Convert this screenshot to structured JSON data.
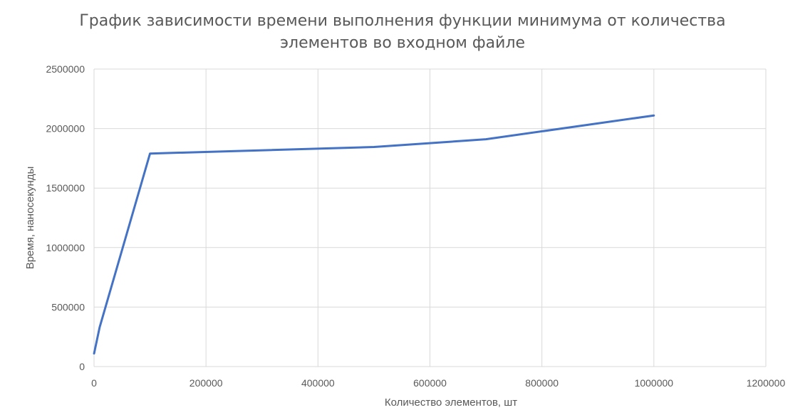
{
  "chart_data": {
    "type": "line",
    "title": "График зависимости времени выполнения функции минимума от количества элементов во входном файле",
    "title_lines": [
      "График зависимости времени выполнения функции минимума от количества",
      "элементов во входном файле"
    ],
    "xlabel": "Количество элементов, шт",
    "ylabel": "Время, наносекунды",
    "xlim": [
      0,
      1200000
    ],
    "ylim": [
      0,
      2500000
    ],
    "xticks": [
      0,
      200000,
      400000,
      600000,
      800000,
      1000000,
      1200000
    ],
    "yticks": [
      0,
      500000,
      1000000,
      1500000,
      2000000,
      2500000
    ],
    "grid": true,
    "series": [
      {
        "color": "#4472C4",
        "x": [
          100,
          10000,
          100000,
          500000,
          700000,
          1000000
        ],
        "y": [
          110000,
          330000,
          1790000,
          1845000,
          1910000,
          2110000
        ]
      }
    ]
  }
}
